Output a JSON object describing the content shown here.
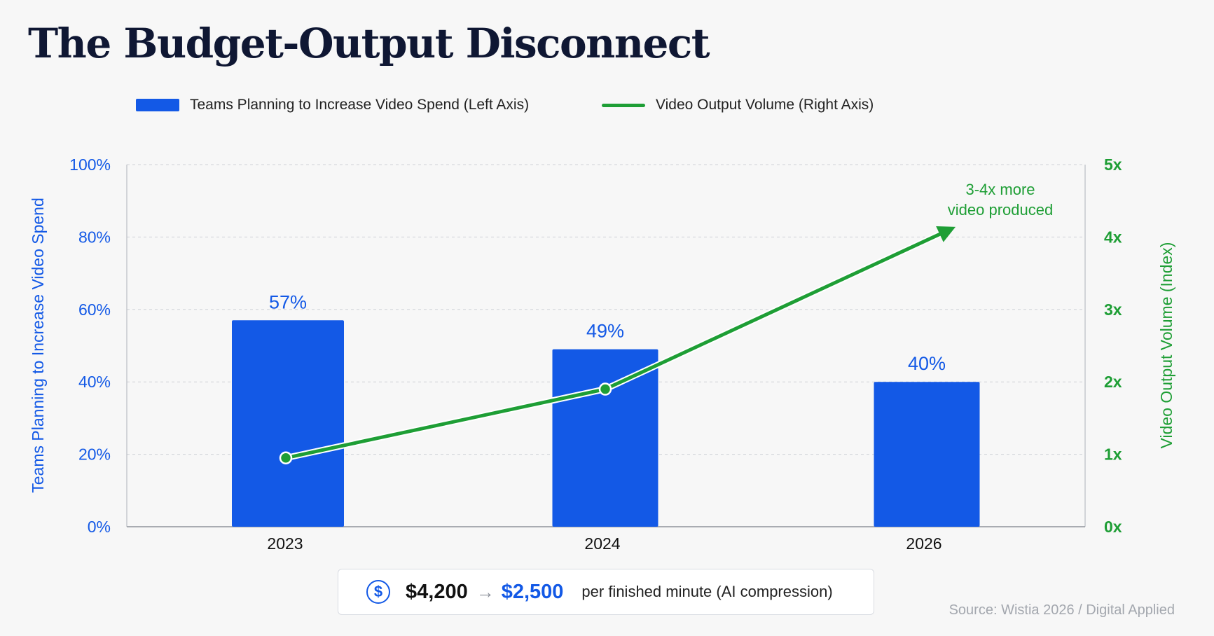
{
  "title": "The Budget-Output Disconnect",
  "legend": {
    "bar_label": "Teams Planning to Increase Video Spend (Left Axis)",
    "line_label": "Video Output Volume (Right Axis)"
  },
  "chart_data": {
    "type": "bar",
    "categories": [
      "2023",
      "2024",
      "2026"
    ],
    "series": [
      {
        "name": "Teams Planning to Increase Video Spend (Left Axis)",
        "type": "bar",
        "axis": "left",
        "values": [
          57,
          49,
          40
        ],
        "data_labels": [
          "57%",
          "49%",
          "40%"
        ],
        "color": "#1359e6"
      },
      {
        "name": "Video Output Volume (Right Axis)",
        "type": "line",
        "axis": "right",
        "values": [
          0.95,
          1.9,
          4.1
        ],
        "color": "#1e9e35",
        "end_arrow": true
      }
    ],
    "ylabel_left": "Teams Planning to Increase Video Spend",
    "ylabel_right": "Video Output Volume (Index)",
    "ylim_left": [
      0,
      100
    ],
    "yticks_left": [
      "0%",
      "20%",
      "40%",
      "60%",
      "80%",
      "100%"
    ],
    "ylim_right": [
      0,
      5
    ],
    "yticks_right": [
      "0x",
      "1x",
      "2x",
      "3x",
      "4x",
      "5x"
    ],
    "grid": true,
    "annotation": [
      "3-4x more",
      "video produced"
    ]
  },
  "callout": {
    "icon": "dollar-icon",
    "price_old": "$4,200",
    "arrow": "→",
    "price_new": "$2,500",
    "note": "per finished minute (AI compression)"
  },
  "source": "Source: Wistia 2026 / Digital Applied"
}
